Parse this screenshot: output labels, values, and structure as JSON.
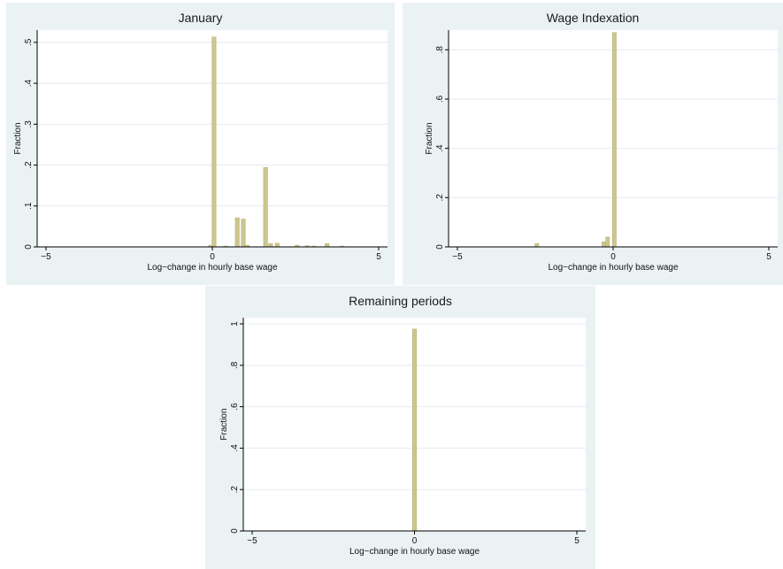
{
  "chart_data": [
    {
      "type": "bar",
      "title": "January",
      "xlabel": "Log−change in hourly base wage",
      "ylabel": "Fraction",
      "xlim": [
        -5,
        5
      ],
      "ylim": [
        0,
        0.53
      ],
      "xticks": [
        "−5",
        "0",
        "5"
      ],
      "yticks": [
        "0",
        ".1",
        ".2",
        ".3",
        ".4",
        ".5"
      ],
      "bin_width": 0.12,
      "grid": true,
      "bars": [
        {
          "x": -0.05,
          "y": 0.004
        },
        {
          "x": 0.05,
          "y": 0.513
        },
        {
          "x": 0.4,
          "y": 0.002
        },
        {
          "x": 0.75,
          "y": 0.071
        },
        {
          "x": 0.93,
          "y": 0.068
        },
        {
          "x": 1.05,
          "y": 0.004
        },
        {
          "x": 1.6,
          "y": 0.194
        },
        {
          "x": 1.75,
          "y": 0.008
        },
        {
          "x": 1.95,
          "y": 0.009
        },
        {
          "x": 2.55,
          "y": 0.004
        },
        {
          "x": 2.85,
          "y": 0.003
        },
        {
          "x": 3.05,
          "y": 0.002
        },
        {
          "x": 3.45,
          "y": 0.008
        },
        {
          "x": 3.9,
          "y": 0.002
        }
      ]
    },
    {
      "type": "bar",
      "title": "Wage Indexation",
      "xlabel": "Log−change in hourly base wage",
      "ylabel": "Fraction",
      "xlim": [
        -5,
        5
      ],
      "ylim": [
        0,
        0.88
      ],
      "xticks": [
        "−5",
        "0",
        "5"
      ],
      "yticks": [
        "0",
        ".2",
        ".4",
        ".6",
        ".8"
      ],
      "bin_width": 0.12,
      "grid": true,
      "bars": [
        {
          "x": -2.45,
          "y": 0.014
        },
        {
          "x": -0.3,
          "y": 0.02
        },
        {
          "x": -0.18,
          "y": 0.04
        },
        {
          "x": 0.04,
          "y": 0.87
        }
      ]
    },
    {
      "type": "bar",
      "title": "Remaining periods",
      "xlabel": "Log−change in hourly base wage",
      "ylabel": "Fraction",
      "xlim": [
        -5,
        5
      ],
      "ylim": [
        0,
        1.03
      ],
      "xticks": [
        "−5",
        "0",
        "5"
      ],
      "yticks": [
        "0",
        ".2",
        ".4",
        ".6",
        ".8",
        "1"
      ],
      "bin_width": 0.12,
      "grid": true,
      "bars": [
        {
          "x": 0.0,
          "y": 0.975
        }
      ]
    }
  ],
  "colors": {
    "panel_bg": "#eaf2f3",
    "plot_bg": "#ffffff",
    "bar": "#cdc68f",
    "bar_edge": "#b3ab6a",
    "grid": "#e4ecec"
  }
}
